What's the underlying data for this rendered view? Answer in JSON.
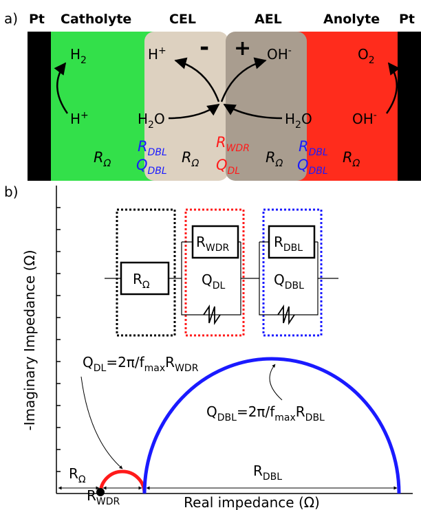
{
  "panel_a": {
    "label": "a)",
    "pt_left": "Pt",
    "catholyte": "Catholyte",
    "cel": "CEL",
    "ael": "AEL",
    "anolyte": "Anolyte",
    "pt_right": "Pt",
    "minus": "-",
    "plus": "+",
    "species": {
      "h2": {
        "base": "H",
        "sub": "2"
      },
      "h_plus_catholyte": {
        "base": "H",
        "sup": "+"
      },
      "h_plus_cel": {
        "base": "H",
        "sup": "+"
      },
      "h2o_cel": {
        "base": "H",
        "sub": "2",
        "tail": "O"
      },
      "oh_ael": {
        "base": "OH",
        "sup": "-"
      },
      "h2o_anolyte": {
        "base": "H",
        "sub": "2",
        "tail": "O"
      },
      "o2": {
        "base": "O",
        "sub": "2"
      },
      "oh_anolyte": {
        "base": "OH",
        "sup": "-"
      }
    },
    "params": {
      "r_omega_catholyte": {
        "base": "R",
        "sub": "Ω"
      },
      "r_dbl_cel": {
        "base": "R",
        "sub": "DBL"
      },
      "q_dbl_cel": {
        "base": "Q",
        "sub": "DBL"
      },
      "r_omega_cel": {
        "base": "R",
        "sub": "Ω"
      },
      "r_wdr": {
        "base": "R",
        "sub": "WDR"
      },
      "q_dl": {
        "base": "Q",
        "sub": "DL"
      },
      "r_omega_ael": {
        "base": "R",
        "sub": "Ω"
      },
      "r_dbl_ael": {
        "base": "R",
        "sub": "DBL"
      },
      "q_dbl_ael": {
        "base": "Q",
        "sub": "DBL"
      },
      "r_omega_anolyte": {
        "base": "R",
        "sub": "Ω"
      }
    }
  },
  "panel_b": {
    "label": "b)",
    "y_axis_label": "-Imaginary Impedance (Ω)",
    "x_axis_label": "Real impedance (Ω)",
    "circuit": {
      "r_omega": {
        "base": "R",
        "sub": "Ω"
      },
      "r_wdr": {
        "base": "R",
        "sub": "WDR"
      },
      "q_dl": {
        "base": "Q",
        "sub": "DL"
      },
      "r_dbl": {
        "base": "R",
        "sub": "DBL"
      },
      "q_dbl": {
        "base": "Q",
        "sub": "DBL"
      }
    },
    "annotations": {
      "q_dl_formula": {
        "base": "Q",
        "sub": "DL",
        "mid": "=2π/f",
        "mid_sub": "max",
        "tail": "R",
        "tail_sub": "WDR"
      },
      "q_dbl_formula": {
        "base": "Q",
        "sub": "DBL",
        "mid": "=2π/f",
        "mid_sub": "max",
        "tail": "R",
        "tail_sub": "DBL"
      },
      "r_omega": {
        "base": "R",
        "sub": "Ω"
      },
      "r_dbl": {
        "base": "R",
        "sub": "DBL"
      },
      "r_wdr": {
        "base": "R",
        "sub": "WDR"
      }
    }
  }
}
